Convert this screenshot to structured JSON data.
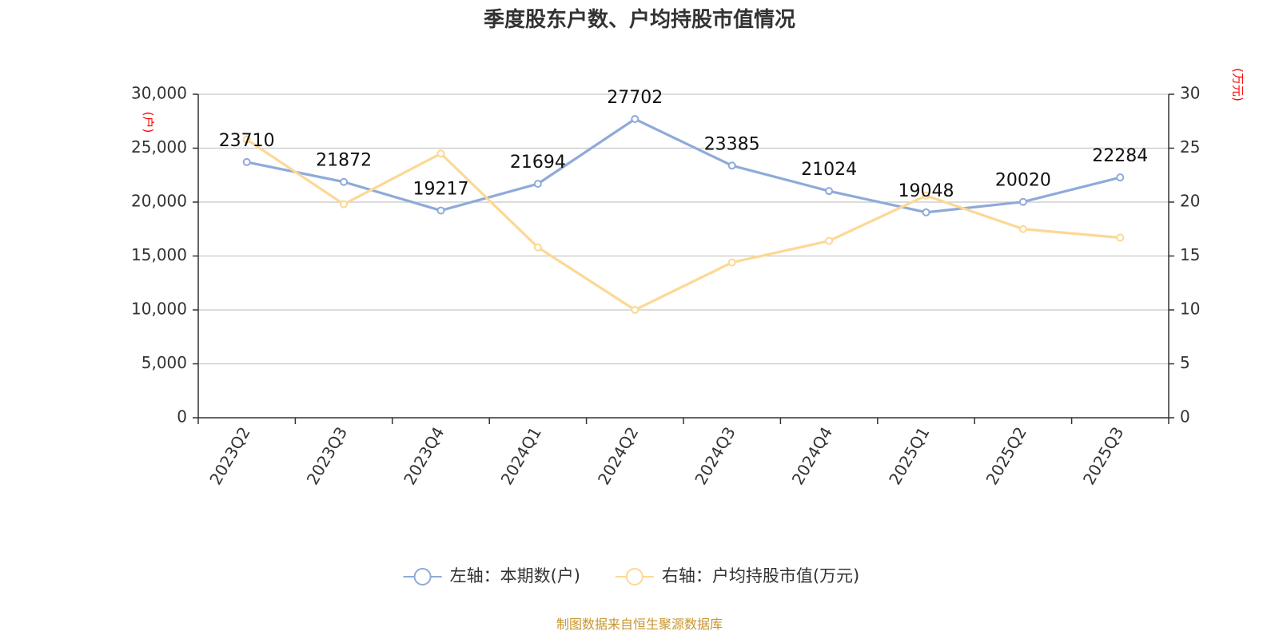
{
  "chart_data": {
    "type": "line",
    "title": "季度股东户数、户均持股市值情况",
    "categories": [
      "2023Q2",
      "2023Q3",
      "2023Q4",
      "2024Q1",
      "2024Q2",
      "2024Q3",
      "2024Q4",
      "2025Q1",
      "2025Q2",
      "2025Q3"
    ],
    "left_axis": {
      "unit_label": "(户)",
      "ylim": [
        0,
        30000
      ],
      "ticks": [
        0,
        5000,
        10000,
        15000,
        20000,
        25000,
        30000
      ],
      "tick_labels": [
        "0",
        "5,000",
        "10,000",
        "15,000",
        "20,000",
        "25,000",
        "30,000"
      ]
    },
    "right_axis": {
      "unit_label": "(万元)",
      "ylim": [
        0,
        30
      ],
      "ticks": [
        0,
        5,
        10,
        15,
        20,
        25,
        30
      ],
      "tick_labels": [
        "0",
        "5",
        "10",
        "15",
        "20",
        "25",
        "30"
      ]
    },
    "series": [
      {
        "name": "左轴：本期数(户)",
        "axis": "left",
        "color": "#8eaad9",
        "values": [
          23710,
          21872,
          19217,
          21694,
          27702,
          23385,
          21024,
          19048,
          20020,
          22284
        ],
        "show_labels": true
      },
      {
        "name": "右轴：户均持股市值(万元)",
        "axis": "right",
        "color": "#fcd894",
        "values": [
          25.8,
          19.8,
          24.5,
          15.8,
          10.0,
          14.4,
          16.4,
          20.6,
          17.5,
          16.7
        ],
        "show_labels": false
      }
    ],
    "grid": true,
    "legend_position": "bottom-center"
  },
  "source": "制图数据来自恒生聚源数据库"
}
